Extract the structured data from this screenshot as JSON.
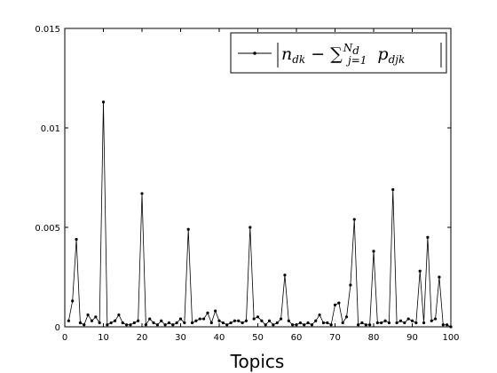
{
  "chart_data": {
    "type": "line",
    "title": "",
    "xlabel": "Topics",
    "ylabel": "",
    "xlim": [
      0,
      100
    ],
    "ylim": [
      0,
      0.015
    ],
    "x_ticks": [
      0,
      10,
      20,
      30,
      40,
      50,
      60,
      70,
      80,
      90,
      100
    ],
    "y_ticks": [
      0,
      0.005,
      0.01,
      0.015
    ],
    "y_tick_labels": [
      "0",
      "0.005",
      "0.01",
      "0.015"
    ],
    "grid": false,
    "legend_position": "top-right",
    "colors": {
      "line": "#000000",
      "marker": "#000000",
      "axes": "#000000",
      "background": "#ffffff"
    },
    "series": [
      {
        "name": "|n_dk − Σ_{j=1}^{N_d} p_djk|",
        "marker": "dot",
        "x": [
          1,
          2,
          3,
          4,
          5,
          6,
          7,
          8,
          9,
          10,
          11,
          12,
          13,
          14,
          15,
          16,
          17,
          18,
          19,
          20,
          21,
          22,
          23,
          24,
          25,
          26,
          27,
          28,
          29,
          30,
          31,
          32,
          33,
          34,
          35,
          36,
          37,
          38,
          39,
          40,
          41,
          42,
          43,
          44,
          45,
          46,
          47,
          48,
          49,
          50,
          51,
          52,
          53,
          54,
          55,
          56,
          57,
          58,
          59,
          60,
          61,
          62,
          63,
          64,
          65,
          66,
          67,
          68,
          69,
          70,
          71,
          72,
          73,
          74,
          75,
          76,
          77,
          78,
          79,
          80,
          81,
          82,
          83,
          84,
          85,
          86,
          87,
          88,
          89,
          90,
          91,
          92,
          93,
          94,
          95,
          96,
          97,
          98,
          99,
          100
        ],
        "y": [
          0.0003,
          0.0013,
          0.0044,
          0.0002,
          0.0001,
          0.0006,
          0.0003,
          0.0005,
          0.0002,
          0.0113,
          0.0001,
          0.0002,
          0.0003,
          0.0006,
          0.0002,
          0.0001,
          0.0001,
          0.0002,
          0.0003,
          0.0067,
          0.0001,
          0.0004,
          0.0002,
          0.0001,
          0.0003,
          0.0001,
          0.0002,
          0.0001,
          0.0002,
          0.0004,
          0.0002,
          0.0049,
          0.0002,
          0.0003,
          0.0004,
          0.0004,
          0.0007,
          0.0002,
          0.0008,
          0.0003,
          0.0002,
          0.0001,
          0.0002,
          0.0003,
          0.0003,
          0.0002,
          0.0003,
          0.005,
          0.0004,
          0.0005,
          0.0003,
          0.0001,
          0.0003,
          0.0001,
          0.0002,
          0.0004,
          0.0026,
          0.0003,
          0.0001,
          0.0001,
          0.0002,
          0.0001,
          0.0002,
          0.0001,
          0.0003,
          0.0006,
          0.0002,
          0.0002,
          0.0001,
          0.0011,
          0.0012,
          0.0002,
          0.0005,
          0.0021,
          0.0054,
          0.0001,
          0.0002,
          0.0001,
          0.0001,
          0.0038,
          0.0002,
          0.0002,
          0.0003,
          0.0002,
          0.0069,
          0.0002,
          0.0003,
          0.0002,
          0.0004,
          0.0003,
          0.0002,
          0.0028,
          0.0002,
          0.0045,
          0.0003,
          0.0004,
          0.0025,
          0.0001,
          0.0001,
          0.0
        ]
      }
    ]
  }
}
